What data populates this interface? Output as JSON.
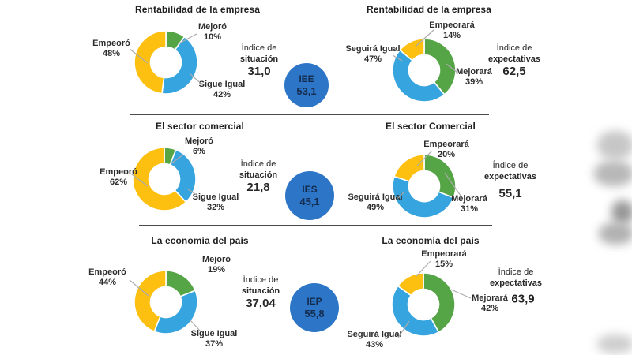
{
  "accent_colors": {
    "green": "#55A546",
    "blue": "#36A4DE",
    "yellow": "#FDC011",
    "index_circle": "#2D75C6",
    "divider": "#4a4a4a"
  },
  "chart_data": [
    {
      "type": "pie",
      "variant": "donut",
      "panel": "situacion",
      "title": "Rentabilidad de la empresa",
      "categories": [
        "Mejoró",
        "Sigue Igual",
        "Empeoró"
      ],
      "values": [
        10,
        42,
        48
      ],
      "labels": [
        "10%",
        "42%",
        "48%"
      ],
      "colors": [
        "green",
        "blue",
        "yellow"
      ],
      "index": {
        "prefix": "Índice de",
        "name": "situación",
        "value": "31,0"
      }
    },
    {
      "type": "pie",
      "variant": "donut",
      "panel": "expectativas",
      "title": "Rentabilidad de la empresa",
      "categories": [
        "Mejorará",
        "Seguirá Igual",
        "Empeorará"
      ],
      "values": [
        39,
        47,
        14
      ],
      "labels": [
        "39%",
        "47%",
        "14%"
      ],
      "colors": [
        "green",
        "blue",
        "yellow"
      ],
      "index": {
        "prefix": "Índice de",
        "name": "expectativas",
        "value": "62,5"
      }
    },
    {
      "type": "pie",
      "variant": "donut",
      "panel": "situacion",
      "title": "El sector comercial",
      "categories": [
        "Mejoró",
        "Sigue Igual",
        "Empeoró"
      ],
      "values": [
        6,
        32,
        62
      ],
      "labels": [
        "6%",
        "32%",
        "62%"
      ],
      "colors": [
        "green",
        "blue",
        "yellow"
      ],
      "index": {
        "prefix": "Índice de",
        "name": "situación",
        "value": "21,8"
      }
    },
    {
      "type": "pie",
      "variant": "donut",
      "panel": "expectativas",
      "title": "El sector Comercial",
      "categories": [
        "Mejorará",
        "Seguirá Igual",
        "Empeorará"
      ],
      "values": [
        31,
        49,
        20
      ],
      "labels": [
        "31%",
        "49%",
        "20%"
      ],
      "colors": [
        "green",
        "blue",
        "yellow"
      ],
      "index": {
        "prefix": "Índice de",
        "name": "expectativas",
        "value": "55,1"
      }
    },
    {
      "type": "pie",
      "variant": "donut",
      "panel": "situacion",
      "title": "La economía del país",
      "categories": [
        "Mejoró",
        "Sigue Igual",
        "Empeoró"
      ],
      "values": [
        19,
        37,
        44
      ],
      "labels": [
        "19%",
        "37%",
        "44%"
      ],
      "colors": [
        "green",
        "blue",
        "yellow"
      ],
      "index": {
        "prefix": "Índice de",
        "name": "situación",
        "value": "37,04"
      }
    },
    {
      "type": "pie",
      "variant": "donut",
      "panel": "expectativas",
      "title": "La economía del país",
      "categories": [
        "Mejorará",
        "Seguirá Igual",
        "Empeorará"
      ],
      "values": [
        42,
        43,
        15
      ],
      "labels": [
        "42%",
        "43%",
        "15%"
      ],
      "colors": [
        "green",
        "blue",
        "yellow"
      ],
      "index": {
        "prefix": "Índice de",
        "name": "expectativas",
        "value": "63,9"
      }
    }
  ],
  "index_circles": [
    {
      "code": "IEE",
      "value": "53,1"
    },
    {
      "code": "IES",
      "value": "45,1"
    },
    {
      "code": "IEP",
      "value": "55,8"
    }
  ]
}
